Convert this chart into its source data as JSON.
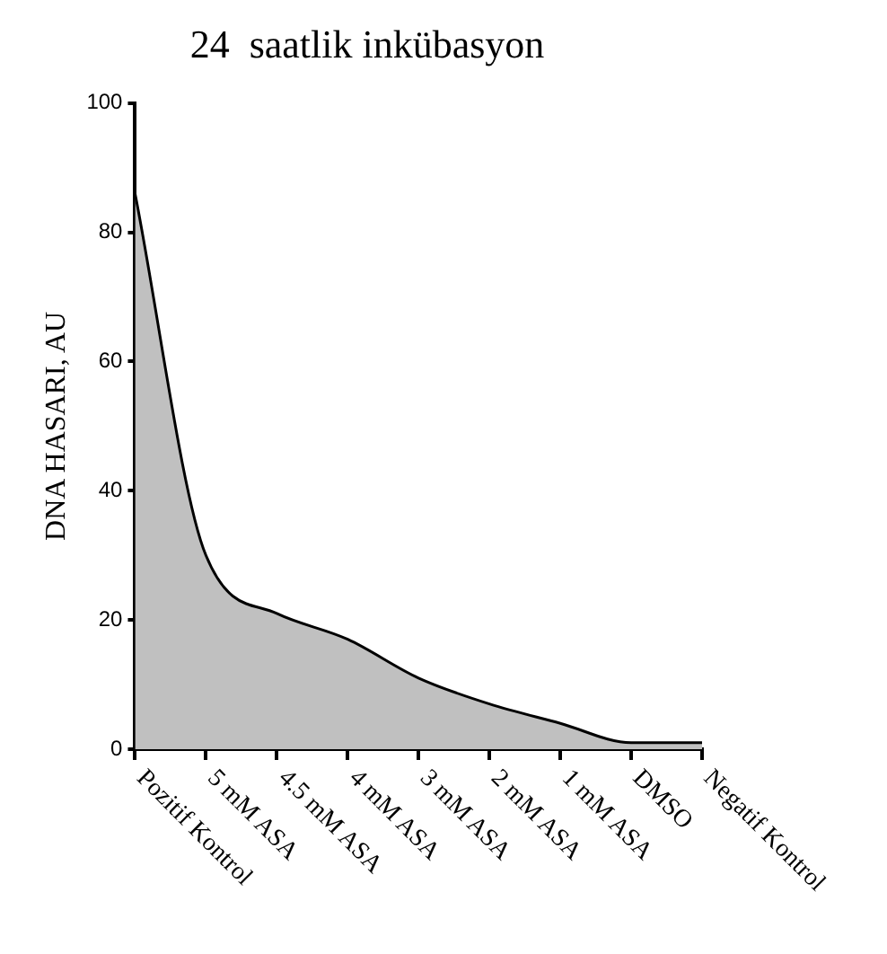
{
  "chart_data": {
    "type": "area",
    "title": "24  saatlik inkübasyon",
    "ylabel": "DNA HASARI, AU",
    "categories": [
      "Pozitif Kontrol",
      "5 mM ASA",
      "4.5 mM ASA",
      "4 mM ASA",
      "3 mM ASA",
      "2 mM ASA",
      "1 mM ASA",
      "DMSO",
      "Negatif Kontrol"
    ],
    "series": [
      {
        "color": "#c0c0c0",
        "values": [
          86,
          30,
          21,
          17,
          11,
          7,
          4,
          1,
          1
        ]
      }
    ],
    "ylim": [
      0,
      100
    ],
    "yticks": [
      0,
      20,
      40,
      60,
      80,
      100
    ],
    "grid": false,
    "legend": false,
    "marker": "none"
  }
}
